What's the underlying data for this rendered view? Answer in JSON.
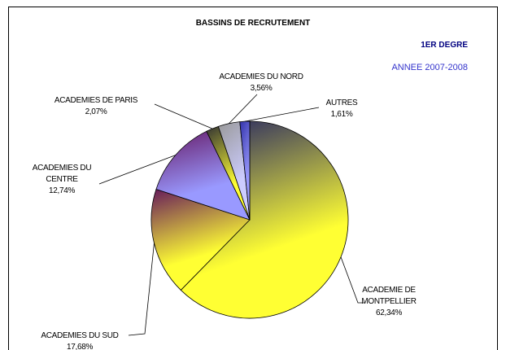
{
  "chart_data": {
    "type": "pie",
    "title": "BASSINS DE RECRUTEMENT",
    "subtitle": "1ER DEGRE",
    "annotation": "ANNEE 2007-2008",
    "categories": [
      "ACADEMIE DE MONTPELLIER",
      "ACADEMIES DU SUD",
      "ACADEMIES DU CENTRE",
      "ACADEMIES DE PARIS",
      "ACADEMIES DU NORD",
      "AUTRES"
    ],
    "values": [
      62.34,
      17.68,
      12.74,
      2.07,
      3.56,
      1.61
    ],
    "value_labels": [
      "62,34%",
      "17,68%",
      "12,74%",
      "2,07%",
      "3,56%",
      "1,61%"
    ],
    "colors": [
      "#ffff33",
      "#ffff33",
      "#9999ff",
      "#ffff33",
      "#ccccff",
      "#9999ff"
    ]
  }
}
